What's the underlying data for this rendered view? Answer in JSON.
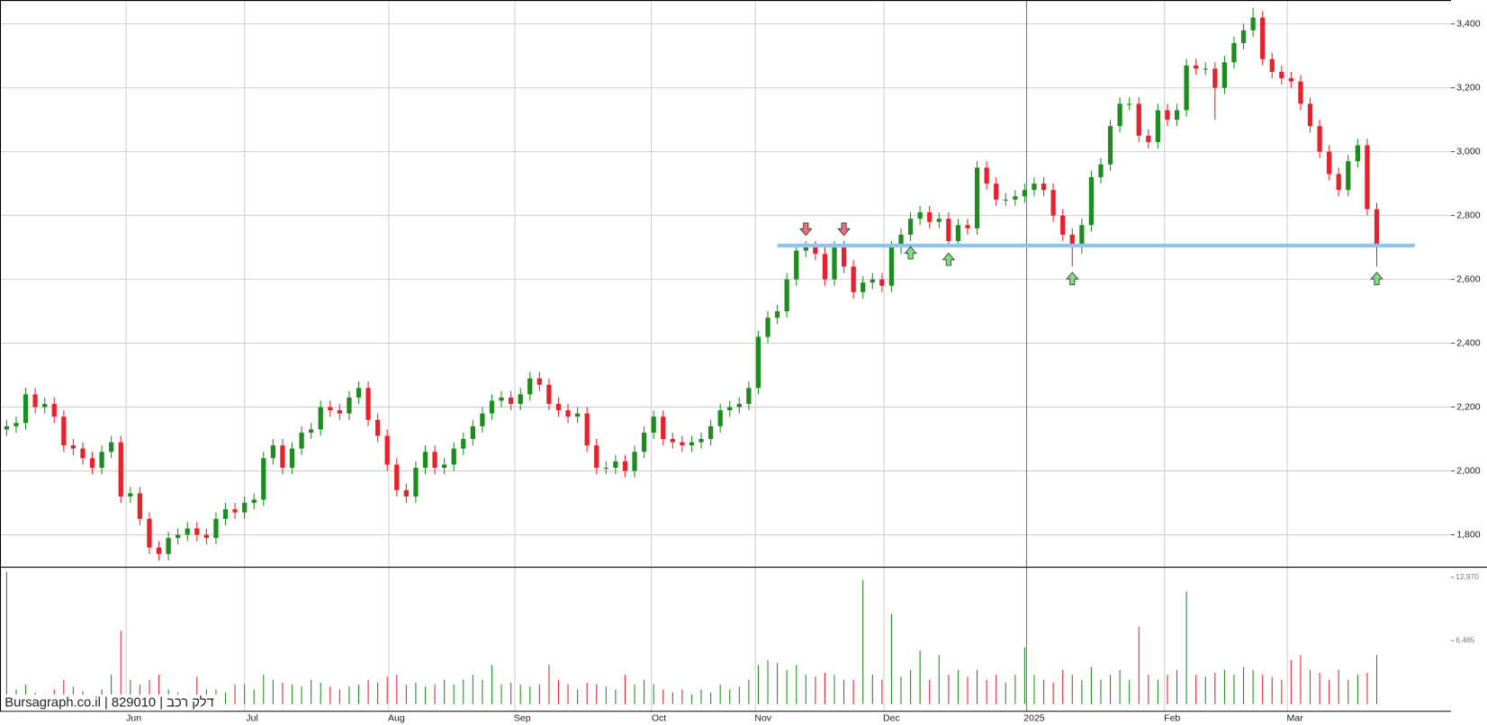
{
  "chart_data": {
    "type": "candlestick",
    "footer": "Bursagraph.co.il | 829010 | דלק רכב",
    "up_color": "#1e8c1e",
    "down_color": "#e8212b",
    "grid": true,
    "xlim": [
      -0.7,
      151.8
    ],
    "xticks": [
      {
        "value": 12.56,
        "label": "Jun"
      },
      {
        "value": 25.0,
        "label": "Jul"
      },
      {
        "value": 40.16,
        "label": "Aug"
      },
      {
        "value": 53.4,
        "label": "Sep"
      },
      {
        "value": 67.76,
        "label": "Oct"
      },
      {
        "value": 78.7,
        "label": "Nov"
      },
      {
        "value": 92.2,
        "label": "Dec"
      },
      {
        "value": 107.2,
        "label": "2025"
      },
      {
        "value": 121.7,
        "label": "Feb"
      },
      {
        "value": 134.6,
        "label": "Mar"
      }
    ],
    "ylim": [
      1700,
      3475
    ],
    "yticks": [
      {
        "value": 1800,
        "label": "1,800"
      },
      {
        "value": 2000,
        "label": "2,000"
      },
      {
        "value": 2200,
        "label": "2,200"
      },
      {
        "value": 2400,
        "label": "2,400"
      },
      {
        "value": 2600,
        "label": "2,600"
      },
      {
        "value": 2800,
        "label": "2,800"
      },
      {
        "value": 3000,
        "label": "3,000"
      },
      {
        "value": 3200,
        "label": "3,200"
      },
      {
        "value": 3400,
        "label": "3,400"
      }
    ],
    "y2lim": [
      -677,
      14035
    ],
    "y2ticks": [
      {
        "value": 6485,
        "label": "6,485"
      },
      {
        "value": 12970,
        "label": "12,970"
      }
    ],
    "open": [
      2130,
      2140,
      2150,
      2240,
      2200,
      2210,
      2170,
      2080,
      2070,
      2040,
      2010,
      2060,
      2090,
      1920,
      1930,
      1850,
      1760,
      1740,
      1790,
      1800,
      1820,
      1800,
      1790,
      1850,
      1880,
      1870,
      1900,
      1910,
      2040,
      2080,
      2010,
      2070,
      2120,
      2130,
      2200,
      2190,
      2180,
      2230,
      2260,
      2160,
      2110,
      2020,
      1940,
      1920,
      2010,
      2060,
      2010,
      2020,
      2070,
      2100,
      2140,
      2180,
      2220,
      2230,
      2210,
      2240,
      2290,
      2270,
      2210,
      2190,
      2170,
      2180,
      2080,
      2010,
      2010,
      2030,
      2000,
      2060,
      2120,
      2170,
      2100,
      2090,
      2080,
      2090,
      2100,
      2140,
      2190,
      2200,
      2210,
      2260,
      2420,
      2480,
      2500,
      2600,
      2690,
      2700,
      2680,
      2600,
      2700,
      2640,
      2560,
      2590,
      2600,
      2580,
      2700,
      2740,
      2790,
      2810,
      2780,
      2790,
      2720,
      2770,
      2760,
      2950,
      2900,
      2850,
      2850,
      2860,
      2880,
      2900,
      2880,
      2800,
      2740,
      2700,
      2770,
      2920,
      2960,
      3080,
      3150,
      3150,
      3050,
      3030,
      3130,
      3100,
      3130,
      3270,
      3260,
      3260,
      3200,
      3280,
      3340,
      3380,
      3420,
      3290,
      3250,
      3230,
      3220,
      3150,
      3080,
      3000,
      2930,
      2880,
      2970,
      3020,
      2820
    ],
    "high": [
      2160,
      2170,
      2260,
      2260,
      2230,
      2230,
      2190,
      2100,
      2090,
      2060,
      2080,
      2110,
      2110,
      1950,
      1950,
      1870,
      1780,
      1810,
      1820,
      1840,
      1840,
      1820,
      1870,
      1900,
      1900,
      1920,
      1930,
      2060,
      2100,
      2100,
      2090,
      2140,
      2150,
      2220,
      2220,
      2210,
      2250,
      2280,
      2280,
      2180,
      2130,
      2040,
      1960,
      2030,
      2080,
      2080,
      2040,
      2090,
      2120,
      2160,
      2200,
      2240,
      2250,
      2250,
      2260,
      2310,
      2310,
      2290,
      2230,
      2210,
      2200,
      2200,
      2100,
      2030,
      2050,
      2050,
      2080,
      2140,
      2190,
      2190,
      2120,
      2110,
      2110,
      2120,
      2160,
      2210,
      2220,
      2230,
      2280,
      2440,
      2500,
      2520,
      2620,
      2710,
      2720,
      2720,
      2700,
      2720,
      2720,
      2660,
      2610,
      2620,
      2620,
      2720,
      2760,
      2810,
      2830,
      2830,
      2810,
      2810,
      2790,
      2790,
      2970,
      2970,
      2920,
      2870,
      2880,
      2900,
      2920,
      2920,
      2900,
      2820,
      2760,
      2790,
      2940,
      2980,
      3100,
      3170,
      3170,
      3170,
      3070,
      3150,
      3150,
      3150,
      3290,
      3290,
      3280,
      3280,
      3300,
      3360,
      3400,
      3450,
      3440,
      3310,
      3270,
      3250,
      3240,
      3170,
      3100,
      3020,
      2950,
      2990,
      3040,
      3040,
      2840
    ],
    "low": [
      2110,
      2120,
      2130,
      2180,
      2180,
      2150,
      2060,
      2050,
      2020,
      1990,
      1990,
      2040,
      1900,
      1900,
      1830,
      1740,
      1720,
      1720,
      1770,
      1780,
      1780,
      1770,
      1770,
      1830,
      1850,
      1850,
      1880,
      1890,
      2020,
      1990,
      1990,
      2050,
      2100,
      2110,
      2170,
      2160,
      2160,
      2210,
      2140,
      2090,
      2000,
      1920,
      1900,
      1900,
      1990,
      1990,
      1990,
      2000,
      2050,
      2080,
      2120,
      2160,
      2200,
      2190,
      2190,
      2220,
      2250,
      2190,
      2170,
      2150,
      2150,
      2060,
      1990,
      1990,
      1990,
      1980,
      1980,
      2040,
      2100,
      2080,
      2070,
      2060,
      2060,
      2070,
      2080,
      2120,
      2170,
      2180,
      2190,
      2240,
      2400,
      2460,
      2480,
      2580,
      2670,
      2660,
      2580,
      2580,
      2620,
      2540,
      2540,
      2570,
      2560,
      2560,
      2680,
      2720,
      2770,
      2760,
      2760,
      2700,
      2700,
      2740,
      2740,
      2880,
      2830,
      2830,
      2830,
      2840,
      2860,
      2860,
      2780,
      2720,
      2640,
      2680,
      2750,
      2900,
      2940,
      3060,
      3130,
      3030,
      3010,
      3010,
      3080,
      3080,
      3110,
      3240,
      3240,
      3100,
      3180,
      3260,
      3320,
      3360,
      3270,
      3230,
      3210,
      3200,
      3130,
      3060,
      2980,
      2910,
      2860,
      2860,
      2950,
      2800,
      2640
    ],
    "close": [
      2140,
      2150,
      2240,
      2200,
      2210,
      2170,
      2080,
      2070,
      2040,
      2010,
      2060,
      2090,
      1920,
      1930,
      1850,
      1760,
      1740,
      1790,
      1800,
      1820,
      1800,
      1790,
      1850,
      1880,
      1870,
      1900,
      1910,
      2040,
      2080,
      2010,
      2070,
      2120,
      2130,
      2200,
      2190,
      2180,
      2230,
      2260,
      2160,
      2110,
      2020,
      1940,
      1920,
      2010,
      2060,
      2010,
      2020,
      2070,
      2100,
      2140,
      2180,
      2220,
      2230,
      2210,
      2240,
      2290,
      2270,
      2210,
      2190,
      2170,
      2180,
      2080,
      2010,
      2010,
      2030,
      2000,
      2060,
      2120,
      2170,
      2100,
      2090,
      2080,
      2090,
      2100,
      2140,
      2190,
      2200,
      2210,
      2260,
      2420,
      2480,
      2500,
      2600,
      2690,
      2700,
      2680,
      2600,
      2700,
      2640,
      2560,
      2590,
      2600,
      2580,
      2700,
      2740,
      2790,
      2810,
      2780,
      2790,
      2720,
      2770,
      2760,
      2950,
      2900,
      2850,
      2850,
      2860,
      2880,
      2900,
      2880,
      2800,
      2740,
      2700,
      2770,
      2920,
      2960,
      3080,
      3150,
      3150,
      3050,
      3030,
      3130,
      3100,
      3130,
      3270,
      3260,
      3260,
      3200,
      3280,
      3340,
      3380,
      3420,
      3290,
      3250,
      3230,
      3220,
      3150,
      3080,
      3000,
      2930,
      2880,
      2970,
      3020,
      2820,
      2710
    ],
    "volume": [
      13500,
      1500,
      2000,
      1200,
      1000,
      1500,
      2500,
      1800,
      1300,
      1000,
      1500,
      3000,
      7500,
      2500,
      2000,
      2500,
      3000,
      1500,
      1200,
      1000,
      2800,
      1500,
      1500,
      1200,
      2000,
      2000,
      1500,
      3000,
      2500,
      2200,
      2000,
      1800,
      2500,
      2200,
      1800,
      1500,
      1800,
      2000,
      2500,
      2200,
      2800,
      3000,
      2000,
      2200,
      1800,
      2000,
      2500,
      2000,
      2500,
      3000,
      2500,
      4000,
      2000,
      2200,
      2000,
      1800,
      2000,
      4000,
      2500,
      2000,
      1500,
      2200,
      2000,
      1800,
      1500,
      3000,
      2000,
      2500,
      2000,
      1500,
      1200,
      1500,
      1000,
      1500,
      1200,
      2000,
      1500,
      1800,
      2500,
      4000,
      4500,
      4200,
      3500,
      4000,
      3000,
      2800,
      3200,
      3000,
      2500,
      2500,
      12700,
      3000,
      2500,
      9200,
      2800,
      3500,
      5500,
      2500,
      5000,
      3000,
      3500,
      2800,
      3500,
      2500,
      3000,
      2200,
      3000,
      5800,
      3000,
      2500,
      2200,
      3500,
      3000,
      2500,
      3800,
      2500,
      3000,
      3500,
      2500,
      7900,
      3000,
      2500,
      3000,
      3500,
      11500,
      3000,
      2800,
      3200,
      3500,
      3000,
      3800,
      3500,
      3000,
      2800,
      2500,
      4500,
      5000,
      3500,
      3200,
      2500,
      3500,
      2500,
      3000,
      3200,
      5000
    ],
    "hline": {
      "value": 2706,
      "from": 81,
      "to": 148,
      "color": "#8ec5f0"
    },
    "signals": [
      {
        "index": 84,
        "dir": "down"
      },
      {
        "index": 88,
        "dir": "down"
      },
      {
        "index": 95,
        "dir": "up"
      },
      {
        "index": 99,
        "dir": "up"
      },
      {
        "index": 112,
        "dir": "up"
      },
      {
        "index": 144,
        "dir": "up"
      }
    ]
  }
}
